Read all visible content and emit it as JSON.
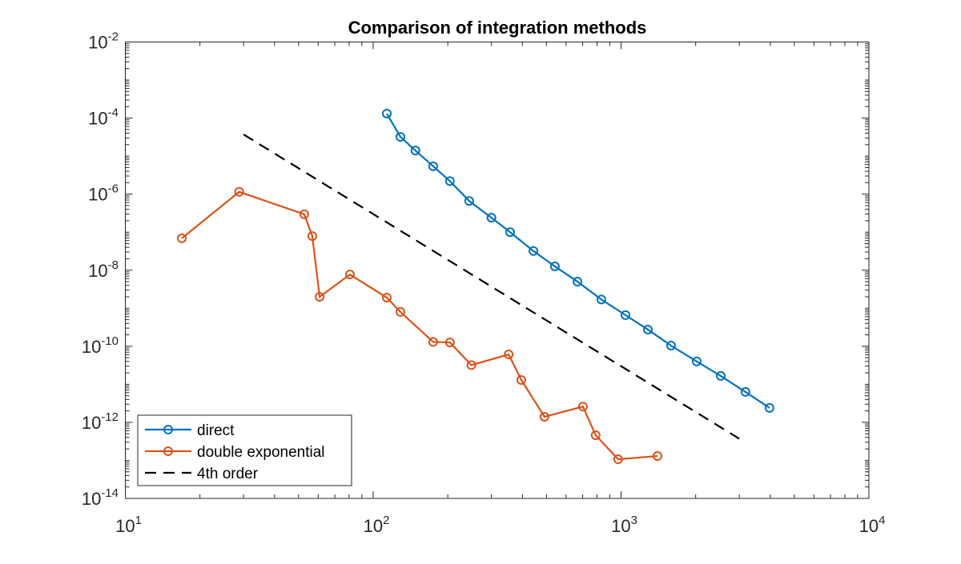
{
  "chart_data": {
    "type": "line",
    "title": "Comparison of integration methods",
    "xlabel": "",
    "ylabel": "",
    "xscale": "log",
    "yscale": "log",
    "xlim": [
      10,
      10000
    ],
    "ylim": [
      1e-14,
      0.01
    ],
    "x_ticks": [
      {
        "base": "10",
        "exp": "1",
        "v": 10
      },
      {
        "base": "10",
        "exp": "2",
        "v": 100
      },
      {
        "base": "10",
        "exp": "3",
        "v": 1000
      },
      {
        "base": "10",
        "exp": "4",
        "v": 10000
      }
    ],
    "y_ticks": [
      {
        "base": "10",
        "exp": "-2",
        "v": -2
      },
      {
        "base": "10",
        "exp": "-4",
        "v": -4
      },
      {
        "base": "10",
        "exp": "-6",
        "v": -6
      },
      {
        "base": "10",
        "exp": "-8",
        "v": -8
      },
      {
        "base": "10",
        "exp": "-10",
        "v": -10
      },
      {
        "base": "10",
        "exp": "-12",
        "v": -12
      },
      {
        "base": "10",
        "exp": "-14",
        "v": -14
      }
    ],
    "grid": false,
    "legend_position": "bottom-left",
    "series": [
      {
        "name": "direct",
        "color": "#0072BD",
        "marker": "circle",
        "line": "solid",
        "x": [
          113.5,
          128.8,
          148,
          174.6,
          204,
          244,
          300,
          357,
          443,
          541,
          667,
          833,
          1042,
          1283,
          1592,
          2020,
          2524,
          3177,
          3972
        ],
        "y": [
          0.000131,
          3.2e-05,
          1.4e-05,
          5.4e-06,
          2.2e-06,
          6.6e-07,
          2.4e-07,
          1e-07,
          3.2e-08,
          1.26e-08,
          5e-09,
          1.7e-09,
          6.6e-10,
          2.75e-10,
          1.04e-10,
          4e-11,
          1.66e-11,
          6.3e-12,
          2.4e-12
        ]
      },
      {
        "name": "double exponential",
        "color": "#D95319",
        "marker": "circle",
        "line": "solid",
        "x": [
          16.9,
          28.8,
          52.7,
          56.8,
          60.8,
          80.6,
          113.5,
          128.8,
          174.6,
          204,
          249,
          352,
          396,
          491,
          702,
          790,
          973,
          1403
        ],
        "y": [
          6.9e-08,
          1.15e-06,
          2.95e-07,
          7.9e-08,
          2e-09,
          7.7e-09,
          1.9e-09,
          8e-10,
          1.3e-10,
          1.26e-10,
          3.2e-11,
          6.1e-11,
          1.3e-11,
          1.4e-12,
          2.6e-12,
          4.6e-13,
          1.07e-13,
          1.3e-13
        ]
      },
      {
        "name": "4th order",
        "color": "#000000",
        "marker": "none",
        "line": "dashed",
        "x": [
          30,
          3000
        ],
        "y": [
          3.7e-05,
          3.7e-13
        ]
      }
    ]
  }
}
